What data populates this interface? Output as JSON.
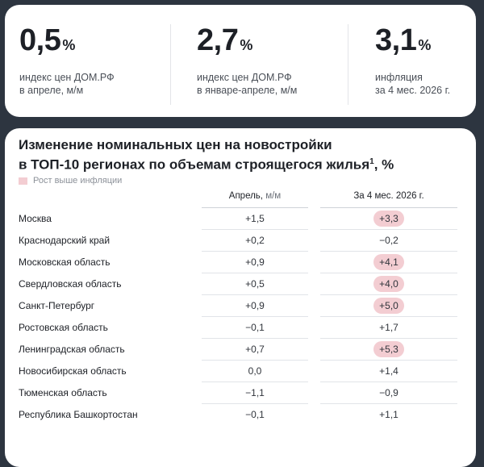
{
  "summary": [
    {
      "value": "0,5",
      "unit": "%",
      "desc1": "индекс цен ДОМ.РФ",
      "desc2": "в апреле, м/м"
    },
    {
      "value": "2,7",
      "unit": "%",
      "desc1": "индекс цен ДОМ.РФ",
      "desc2": "в январе-апреле, м/м"
    },
    {
      "value": "3,1",
      "unit": "%",
      "desc1": "инфляция",
      "desc2": "за 4 мес. 2026 г."
    }
  ],
  "table": {
    "title_line1": "Изменение номинальных цен на новостройки",
    "title_line2": "в ТОП-10 регионах по объемам строящегося жилья",
    "title_footnote": "1",
    "title_suffix": ", %",
    "legend": "Рост выше инфляции",
    "col1_header": "Апрель,",
    "col1_unit": " м/м",
    "col2_header": "За 4 мес. 2026 г."
  },
  "colors": {
    "highlight": "#f3cdd2",
    "background": "#2d3540"
  },
  "chart_data": {
    "type": "table",
    "columns": [
      "Апрель, м/м",
      "За 4 мес. 2026 г."
    ],
    "rows": [
      {
        "region": "Москва",
        "april": "+1,5",
        "ytd": "+3,3",
        "above_inflation": true
      },
      {
        "region": "Краснодарский край",
        "april": "+0,2",
        "ytd": "-0,2",
        "above_inflation": false
      },
      {
        "region": "Московская область",
        "april": "+0,9",
        "ytd": "+4,1",
        "above_inflation": true
      },
      {
        "region": "Свердловская область",
        "april": "+0,5",
        "ytd": "+4,0",
        "above_inflation": true
      },
      {
        "region": "Санкт-Петербург",
        "april": "+0,9",
        "ytd": "+5,0",
        "above_inflation": true
      },
      {
        "region": "Ростовская область",
        "april": "-0,1",
        "ytd": "+1,7",
        "above_inflation": false
      },
      {
        "region": "Ленинградская область",
        "april": "+0,7",
        "ytd": "+5,3",
        "above_inflation": true
      },
      {
        "region": "Новосибирская область",
        "april": "0,0",
        "ytd": "+1,4",
        "above_inflation": false
      },
      {
        "region": "Тюменская область",
        "april": "-1,1",
        "ytd": "-0,9",
        "above_inflation": false
      },
      {
        "region": "Республика Башкортостан",
        "april": "-0,1",
        "ytd": "+1,1",
        "above_inflation": false
      }
    ]
  }
}
